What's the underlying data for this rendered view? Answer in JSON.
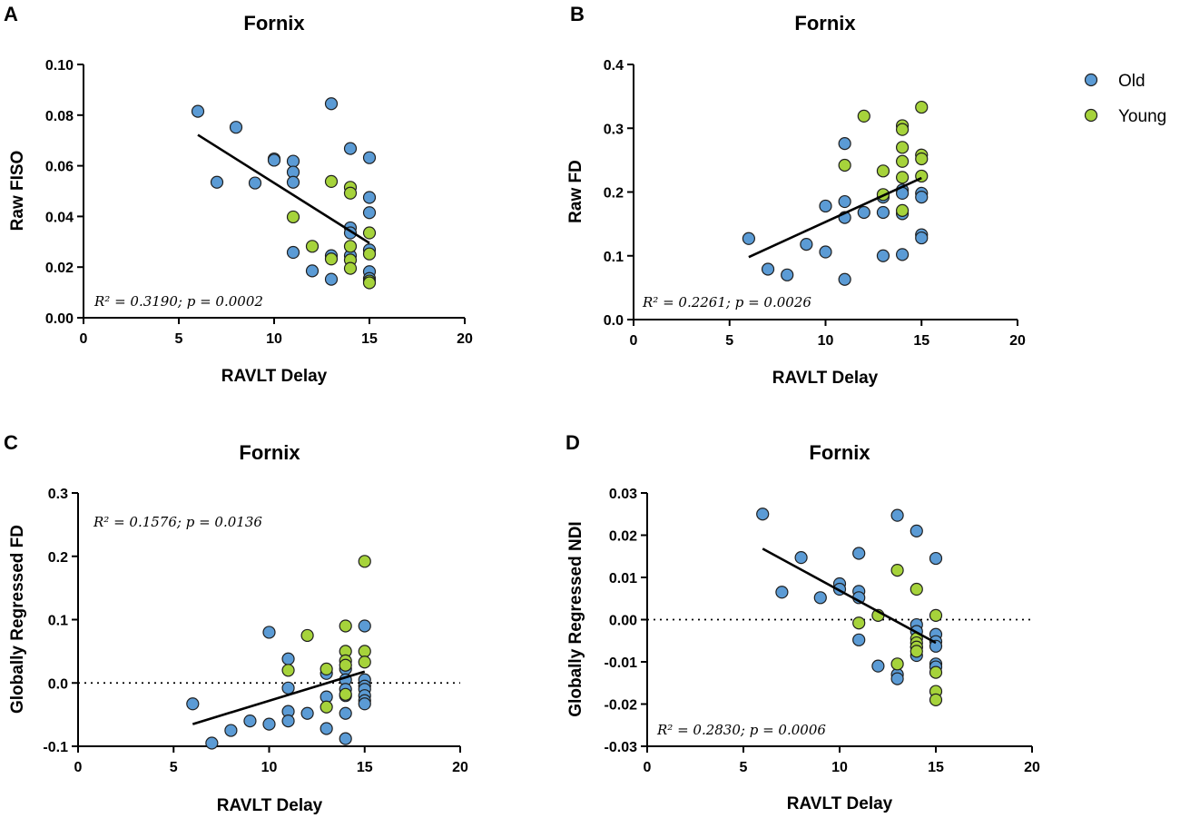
{
  "legend": {
    "items": [
      {
        "label": "Old",
        "color": "#5b9bd5"
      },
      {
        "label": "Young",
        "color": "#a6d33b"
      }
    ]
  },
  "chart_data": [
    {
      "panel": "A",
      "type": "scatter",
      "title": "Fornix",
      "xlabel": "RAVLT Delay",
      "ylabel": "Raw FISO",
      "xlim": [
        0,
        20
      ],
      "ylim": [
        0,
        0.1
      ],
      "xticks": [
        0,
        5,
        10,
        15,
        20
      ],
      "yticks": [
        0,
        0.02,
        0.04,
        0.06,
        0.08,
        0.1
      ],
      "ytick_labels": [
        "0.00",
        "0.02",
        "0.04",
        "0.06",
        "0.08",
        "0.10"
      ],
      "stats_text": "R² = 0.3190; p = 0.0002",
      "stats_position": "bottom-left",
      "reference_line": null,
      "fit_line": {
        "x": [
          6,
          15
        ],
        "y": [
          0.0722,
          0.0295
        ]
      },
      "series": [
        {
          "name": "Old",
          "points": [
            [
              6,
              0.0815
            ],
            [
              7,
              0.0535
            ],
            [
              8,
              0.0752
            ],
            [
              9,
              0.0532
            ],
            [
              10,
              0.0627
            ],
            [
              10,
              0.0622
            ],
            [
              11,
              0.0618
            ],
            [
              11,
              0.0575
            ],
            [
              11,
              0.0535
            ],
            [
              11,
              0.0258
            ],
            [
              12,
              0.0185
            ],
            [
              13,
              0.0845
            ],
            [
              13,
              0.0245
            ],
            [
              13,
              0.0152
            ],
            [
              14,
              0.0668
            ],
            [
              14,
              0.0355
            ],
            [
              14,
              0.0335
            ],
            [
              14,
              0.0245
            ],
            [
              15,
              0.0632
            ],
            [
              15,
              0.0475
            ],
            [
              15,
              0.0415
            ],
            [
              15,
              0.0268
            ],
            [
              15,
              0.0182
            ],
            [
              15,
              0.0155
            ]
          ]
        },
        {
          "name": "Young",
          "points": [
            [
              11,
              0.0398
            ],
            [
              12,
              0.0282
            ],
            [
              13,
              0.0538
            ],
            [
              13,
              0.0232
            ],
            [
              14,
              0.0515
            ],
            [
              14,
              0.0492
            ],
            [
              14,
              0.0282
            ],
            [
              14,
              0.0228
            ],
            [
              14,
              0.0195
            ],
            [
              15,
              0.0335
            ],
            [
              15,
              0.0252
            ],
            [
              15,
              0.0145
            ],
            [
              15,
              0.0138
            ]
          ]
        }
      ]
    },
    {
      "panel": "B",
      "type": "scatter",
      "title": "Fornix",
      "xlabel": "RAVLT Delay",
      "ylabel": "Raw FD",
      "xlim": [
        0,
        20
      ],
      "ylim": [
        0,
        0.4
      ],
      "xticks": [
        0,
        5,
        10,
        15,
        20
      ],
      "yticks": [
        0,
        0.1,
        0.2,
        0.3,
        0.4
      ],
      "ytick_labels": [
        "0.0",
        "0.1",
        "0.2",
        "0.3",
        "0.4"
      ],
      "stats_text": "R² = 0.2261; p = 0.0026",
      "stats_position": "bottom-left",
      "reference_line": null,
      "fit_line": {
        "x": [
          6,
          15
        ],
        "y": [
          0.098,
          0.222
        ]
      },
      "series": [
        {
          "name": "Old",
          "points": [
            [
              6,
              0.127
            ],
            [
              7,
              0.079
            ],
            [
              8,
              0.07
            ],
            [
              9,
              0.118
            ],
            [
              10,
              0.178
            ],
            [
              10,
              0.106
            ],
            [
              11,
              0.276
            ],
            [
              11,
              0.185
            ],
            [
              11,
              0.16
            ],
            [
              11,
              0.063
            ],
            [
              12,
              0.168
            ],
            [
              13,
              0.192
            ],
            [
              13,
              0.168
            ],
            [
              13,
              0.1
            ],
            [
              14,
              0.203
            ],
            [
              14,
              0.198
            ],
            [
              14,
              0.166
            ],
            [
              14,
              0.102
            ],
            [
              15,
              0.198
            ],
            [
              15,
              0.192
            ],
            [
              15,
              0.133
            ],
            [
              15,
              0.128
            ]
          ]
        },
        {
          "name": "Young",
          "points": [
            [
              11,
              0.242
            ],
            [
              12,
              0.319
            ],
            [
              13,
              0.233
            ],
            [
              13,
              0.196
            ],
            [
              14,
              0.304
            ],
            [
              14,
              0.298
            ],
            [
              14,
              0.27
            ],
            [
              14,
              0.248
            ],
            [
              14,
              0.223
            ],
            [
              14,
              0.171
            ],
            [
              15,
              0.333
            ],
            [
              15,
              0.258
            ],
            [
              15,
              0.252
            ],
            [
              15,
              0.225
            ]
          ]
        }
      ]
    },
    {
      "panel": "C",
      "type": "scatter",
      "title": "Fornix",
      "xlabel": "RAVLT Delay",
      "ylabel": "Globally Regressed FD",
      "xlim": [
        0,
        20
      ],
      "ylim": [
        -0.1,
        0.3
      ],
      "xticks": [
        0,
        5,
        10,
        15,
        20
      ],
      "yticks": [
        -0.1,
        0,
        0.1,
        0.2,
        0.3
      ],
      "ytick_labels": [
        "-0.1",
        "0.0",
        "0.1",
        "0.2",
        "0.3"
      ],
      "stats_text": "R² = 0.1576; p = 0.0136",
      "stats_position": "top-left",
      "reference_line": 0,
      "fit_line": {
        "x": [
          6,
          15
        ],
        "y": [
          -0.065,
          0.018
        ]
      },
      "series": [
        {
          "name": "Old",
          "points": [
            [
              6,
              -0.033
            ],
            [
              7,
              -0.095
            ],
            [
              8,
              -0.075
            ],
            [
              9,
              -0.06
            ],
            [
              10,
              0.08
            ],
            [
              10,
              -0.065
            ],
            [
              11,
              0.038
            ],
            [
              11,
              -0.008
            ],
            [
              11,
              -0.045
            ],
            [
              11,
              -0.06
            ],
            [
              12,
              -0.048
            ],
            [
              13,
              0.015
            ],
            [
              13,
              -0.022
            ],
            [
              13,
              -0.072
            ],
            [
              14,
              0.022
            ],
            [
              14,
              0.005
            ],
            [
              14,
              -0.01
            ],
            [
              14,
              -0.02
            ],
            [
              14,
              -0.048
            ],
            [
              14,
              -0.088
            ],
            [
              15,
              0.09
            ],
            [
              15,
              0.005
            ],
            [
              15,
              -0.005
            ],
            [
              15,
              -0.01
            ],
            [
              15,
              -0.02
            ],
            [
              15,
              -0.028
            ],
            [
              15,
              -0.033
            ]
          ]
        },
        {
          "name": "Young",
          "points": [
            [
              11,
              0.02
            ],
            [
              12,
              0.075
            ],
            [
              13,
              0.022
            ],
            [
              13,
              -0.038
            ],
            [
              14,
              0.09
            ],
            [
              14,
              0.05
            ],
            [
              14,
              0.035
            ],
            [
              14,
              0.028
            ],
            [
              14,
              -0.018
            ],
            [
              15,
              0.192
            ],
            [
              15,
              0.05
            ],
            [
              15,
              0.033
            ]
          ]
        }
      ]
    },
    {
      "panel": "D",
      "type": "scatter",
      "title": "Fornix",
      "xlabel": "RAVLT Delay",
      "ylabel": "Globally Regressed NDI",
      "xlim": [
        0,
        20
      ],
      "ylim": [
        -0.03,
        0.03
      ],
      "xticks": [
        0,
        5,
        10,
        15,
        20
      ],
      "yticks": [
        -0.03,
        -0.02,
        -0.01,
        0,
        0.01,
        0.02,
        0.03
      ],
      "ytick_labels": [
        "-0.03",
        "-0.02",
        "-0.01",
        "0.00",
        "0.01",
        "0.02",
        "0.03"
      ],
      "stats_text": "R² = 0.2830; p = 0.0006",
      "stats_position": "bottom-left",
      "reference_line": 0,
      "fit_line": {
        "x": [
          6,
          15
        ],
        "y": [
          0.0168,
          -0.0055
        ]
      },
      "series": [
        {
          "name": "Old",
          "points": [
            [
              6,
              0.025
            ],
            [
              7,
              0.0065
            ],
            [
              8,
              0.0147
            ],
            [
              9,
              0.0052
            ],
            [
              10,
              0.0085
            ],
            [
              10,
              0.0072
            ],
            [
              11,
              0.0157
            ],
            [
              11,
              0.0067
            ],
            [
              11,
              0.0052
            ],
            [
              11,
              -0.0048
            ],
            [
              12,
              -0.011
            ],
            [
              13,
              0.0247
            ],
            [
              13,
              -0.013
            ],
            [
              13,
              -0.014
            ],
            [
              14,
              0.021
            ],
            [
              14,
              -0.0012
            ],
            [
              14,
              -0.0028
            ],
            [
              14,
              -0.0065
            ],
            [
              14,
              -0.0085
            ],
            [
              15,
              0.0145
            ],
            [
              15,
              -0.0035
            ],
            [
              15,
              -0.0052
            ],
            [
              15,
              -0.0063
            ],
            [
              15,
              -0.0105
            ],
            [
              15,
              -0.0112
            ]
          ]
        },
        {
          "name": "Young",
          "points": [
            [
              11,
              -0.0008
            ],
            [
              12,
              0.001
            ],
            [
              13,
              0.0117
            ],
            [
              13,
              -0.0105
            ],
            [
              14,
              0.0072
            ],
            [
              14,
              -0.0045
            ],
            [
              14,
              -0.0055
            ],
            [
              14,
              -0.0065
            ],
            [
              14,
              -0.0075
            ],
            [
              15,
              0.001
            ],
            [
              15,
              -0.0125
            ],
            [
              15,
              -0.017
            ],
            [
              15,
              -0.019
            ]
          ]
        }
      ]
    }
  ]
}
